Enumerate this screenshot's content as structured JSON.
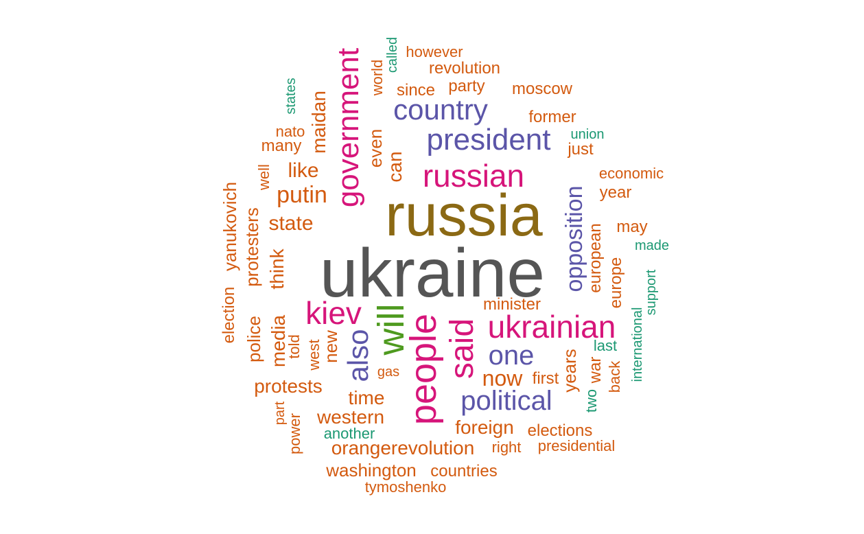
{
  "palette": {
    "dark_gray": "#555555",
    "brown": "#8b6914",
    "magenta": "#d6157a",
    "purple": "#5b55a8",
    "green": "#4e9a1f",
    "orange": "#d35a0f",
    "teal": "#1b9872"
  },
  "words": [
    {
      "text": "ukraine",
      "color": "dark_gray",
      "vertical": false
    },
    {
      "text": "russia",
      "color": "brown",
      "vertical": false
    },
    {
      "text": "russian",
      "color": "magenta",
      "vertical": false
    },
    {
      "text": "president",
      "color": "purple",
      "vertical": false
    },
    {
      "text": "country",
      "color": "purple",
      "vertical": false
    },
    {
      "text": "government",
      "color": "magenta",
      "vertical": true
    },
    {
      "text": "people",
      "color": "magenta",
      "vertical": true
    },
    {
      "text": "will",
      "color": "green",
      "vertical": true
    },
    {
      "text": "said",
      "color": "magenta",
      "vertical": true
    },
    {
      "text": "ukrainian",
      "color": "magenta",
      "vertical": false
    },
    {
      "text": "kiev",
      "color": "magenta",
      "vertical": false
    },
    {
      "text": "also",
      "color": "purple",
      "vertical": true
    },
    {
      "text": "one",
      "color": "purple",
      "vertical": false
    },
    {
      "text": "political",
      "color": "purple",
      "vertical": false
    },
    {
      "text": "opposition",
      "color": "purple",
      "vertical": true
    },
    {
      "text": "minister",
      "color": "orange",
      "vertical": false
    },
    {
      "text": "putin",
      "color": "orange",
      "vertical": false
    },
    {
      "text": "state",
      "color": "orange",
      "vertical": false
    },
    {
      "text": "like",
      "color": "orange",
      "vertical": false
    },
    {
      "text": "maidan",
      "color": "orange",
      "vertical": true
    },
    {
      "text": "many",
      "color": "orange",
      "vertical": false
    },
    {
      "text": "nato",
      "color": "orange",
      "vertical": false
    },
    {
      "text": "states",
      "color": "teal",
      "vertical": true
    },
    {
      "text": "well",
      "color": "orange",
      "vertical": true
    },
    {
      "text": "yanukovich",
      "color": "orange",
      "vertical": true
    },
    {
      "text": "election",
      "color": "orange",
      "vertical": true
    },
    {
      "text": "protesters",
      "color": "orange",
      "vertical": true
    },
    {
      "text": "think",
      "color": "orange",
      "vertical": true
    },
    {
      "text": "police",
      "color": "orange",
      "vertical": true
    },
    {
      "text": "media",
      "color": "orange",
      "vertical": true
    },
    {
      "text": "told",
      "color": "orange",
      "vertical": true
    },
    {
      "text": "west",
      "color": "orange",
      "vertical": true
    },
    {
      "text": "new",
      "color": "orange",
      "vertical": true
    },
    {
      "text": "protests",
      "color": "orange",
      "vertical": false
    },
    {
      "text": "part",
      "color": "orange",
      "vertical": true
    },
    {
      "text": "power",
      "color": "orange",
      "vertical": true
    },
    {
      "text": "gas",
      "color": "orange",
      "vertical": false
    },
    {
      "text": "time",
      "color": "orange",
      "vertical": false
    },
    {
      "text": "western",
      "color": "orange",
      "vertical": false
    },
    {
      "text": "another",
      "color": "teal",
      "vertical": false
    },
    {
      "text": "orangerevolution",
      "color": "orange",
      "vertical": false
    },
    {
      "text": "washington",
      "color": "orange",
      "vertical": false
    },
    {
      "text": "countries",
      "color": "orange",
      "vertical": false
    },
    {
      "text": "tymoshenko",
      "color": "orange",
      "vertical": false
    },
    {
      "text": "foreign",
      "color": "orange",
      "vertical": false
    },
    {
      "text": "now",
      "color": "orange",
      "vertical": false
    },
    {
      "text": "first",
      "color": "orange",
      "vertical": false
    },
    {
      "text": "years",
      "color": "orange",
      "vertical": true
    },
    {
      "text": "two",
      "color": "teal",
      "vertical": true
    },
    {
      "text": "war",
      "color": "orange",
      "vertical": true
    },
    {
      "text": "last",
      "color": "teal",
      "vertical": false
    },
    {
      "text": "back",
      "color": "orange",
      "vertical": true
    },
    {
      "text": "international",
      "color": "teal",
      "vertical": true
    },
    {
      "text": "support",
      "color": "teal",
      "vertical": true
    },
    {
      "text": "europe",
      "color": "orange",
      "vertical": true
    },
    {
      "text": "european",
      "color": "orange",
      "vertical": true
    },
    {
      "text": "made",
      "color": "teal",
      "vertical": false
    },
    {
      "text": "may",
      "color": "orange",
      "vertical": false
    },
    {
      "text": "year",
      "color": "orange",
      "vertical": false
    },
    {
      "text": "economic",
      "color": "orange",
      "vertical": false
    },
    {
      "text": "just",
      "color": "orange",
      "vertical": false
    },
    {
      "text": "union",
      "color": "teal",
      "vertical": false
    },
    {
      "text": "former",
      "color": "orange",
      "vertical": false
    },
    {
      "text": "moscow",
      "color": "orange",
      "vertical": false
    },
    {
      "text": "party",
      "color": "orange",
      "vertical": false
    },
    {
      "text": "since",
      "color": "orange",
      "vertical": false
    },
    {
      "text": "revolution",
      "color": "orange",
      "vertical": false
    },
    {
      "text": "however",
      "color": "orange",
      "vertical": false
    },
    {
      "text": "called",
      "color": "teal",
      "vertical": true
    },
    {
      "text": "world",
      "color": "orange",
      "vertical": true
    },
    {
      "text": "even",
      "color": "orange",
      "vertical": true
    },
    {
      "text": "can",
      "color": "orange",
      "vertical": true
    },
    {
      "text": "elections",
      "color": "orange",
      "vertical": false
    },
    {
      "text": "right",
      "color": "orange",
      "vertical": false
    },
    {
      "text": "presidential",
      "color": "orange",
      "vertical": false
    }
  ]
}
